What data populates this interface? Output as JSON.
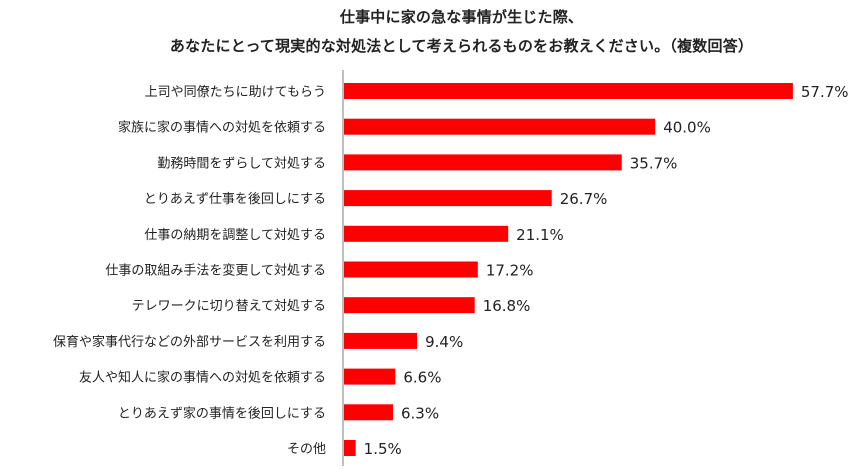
{
  "title_lines": [
    "仕事中に家の急な事情が生じた際、",
    "あなたにとって現実的な対処法として考えられるものをお教えください。（複数回答）"
  ],
  "chart_data": {
    "type": "bar",
    "orientation": "horizontal",
    "categories": [
      "上司や同僚たちに助けてもらう",
      "家族に家の事情への対処を依頼する",
      "勤務時間をずらして対処する",
      "とりあえず仕事を後回しにする",
      "仕事の納期を調整して対処する",
      "仕事の取組み手法を変更して対処する",
      "テレワークに切り替えて対処する",
      "保育や家事代行などの外部サービスを利用する",
      "友人や知人に家の事情への対処を依頼する",
      "とりあえず家の事情を後回しにする",
      "その他"
    ],
    "values": [
      57.7,
      40.0,
      35.7,
      26.7,
      21.1,
      17.2,
      16.8,
      9.4,
      6.6,
      6.3,
      1.5
    ],
    "value_labels": [
      "57.7%",
      "40.0%",
      "35.7%",
      "26.7%",
      "21.1%",
      "17.2%",
      "16.8%",
      "9.4%",
      "6.6%",
      "6.3%",
      "1.5%"
    ],
    "unit": "%",
    "bar_color": "#ff0000",
    "axis_line_color": "#7f7f7f",
    "xlim": [
      0,
      60
    ],
    "grid": false,
    "legend": "none"
  }
}
